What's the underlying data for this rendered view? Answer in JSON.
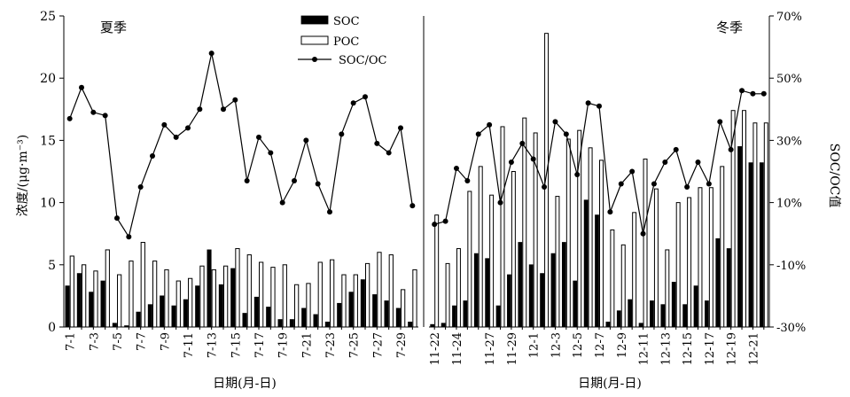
{
  "chart_data": {
    "type": "bar",
    "y_left_label": "浓度/(μg·m⁻³)",
    "y_right_label": "SOC/OC值",
    "y_left_ticks": [
      "0",
      "5",
      "10",
      "15",
      "20",
      "25"
    ],
    "y_left_range": [
      0,
      25
    ],
    "y_right_ticks": [
      "-30%",
      "-10%",
      "10%",
      "30%",
      "50%",
      "70%"
    ],
    "y_right_range": [
      -30,
      70
    ],
    "legend": {
      "soc": "SOC",
      "poc": "POC",
      "ratio": "SOC/OC"
    },
    "panels": [
      {
        "name": "summer",
        "label": "夏季",
        "xlabel": "日期(月-日)",
        "categories": [
          "7-1",
          "7-2",
          "7-3",
          "7-4",
          "7-5",
          "7-6",
          "7-7",
          "7-8",
          "7-9",
          "7-10",
          "7-11",
          "7-12",
          "7-13",
          "7-14",
          "7-15",
          "7-16",
          "7-17",
          "7-18",
          "7-19",
          "7-20",
          "7-21",
          "7-22",
          "7-23",
          "7-24",
          "7-25",
          "7-26",
          "7-27",
          "7-28",
          "7-29",
          "7-30"
        ],
        "tick_labels": [
          "7-1",
          "7-3",
          "7-5",
          "7-7",
          "7-9",
          "7-11",
          "7-13",
          "7-15",
          "7-17",
          "7-19",
          "7-21",
          "7-23",
          "7-25",
          "7-27",
          "7-29"
        ],
        "series": [
          {
            "name": "SOC",
            "values": [
              3.3,
              4.3,
              2.8,
              3.7,
              0.3,
              0.1,
              1.2,
              1.8,
              2.5,
              1.7,
              2.2,
              3.3,
              6.2,
              3.4,
              4.7,
              1.1,
              2.4,
              1.6,
              0.6,
              0.6,
              1.5,
              1.0,
              0.4,
              1.9,
              2.8,
              3.8,
              2.6,
              2.1,
              1.5,
              0.4
            ]
          },
          {
            "name": "POC",
            "values": [
              5.7,
              5.0,
              4.5,
              6.2,
              4.2,
              5.3,
              6.8,
              5.3,
              4.6,
              3.7,
              3.9,
              4.9,
              4.6,
              4.9,
              6.3,
              5.8,
              5.2,
              4.8,
              5.0,
              3.4,
              3.5,
              5.2,
              5.4,
              4.2,
              4.2,
              5.1,
              6.0,
              5.8,
              3.0,
              4.6
            ]
          },
          {
            "name": "SOC/OC",
            "values": [
              37,
              47,
              39,
              38,
              5,
              -1,
              15,
              25,
              35,
              31,
              34,
              40,
              58,
              40,
              43,
              17,
              31,
              26,
              10,
              17,
              30,
              16,
              7,
              32,
              42,
              44,
              29,
              26,
              34,
              9
            ]
          }
        ]
      },
      {
        "name": "winter",
        "label": "冬季",
        "xlabel": "日期(月-日)",
        "categories": [
          "11-22",
          "11-23",
          "11-24",
          "11-25",
          "11-26",
          "11-27",
          "11-28",
          "11-29",
          "11-30",
          "12-1",
          "12-2",
          "12-3",
          "12-4",
          "12-5",
          "12-6",
          "12-7",
          "12-8",
          "12-9",
          "12-10",
          "12-11",
          "12-12",
          "12-13",
          "12-14",
          "12-15",
          "12-16",
          "12-17",
          "12-18",
          "12-19",
          "12-20",
          "12-21",
          "12-22"
        ],
        "tick_labels": [
          "11-22",
          "11-24",
          "11-27",
          "11-29",
          "12-1",
          "12-3",
          "12-5",
          "12-7",
          "12-9",
          "12-11",
          "12-13",
          "12-15",
          "12-17",
          "12-19",
          "12-21"
        ],
        "series": [
          {
            "name": "SOC",
            "values": [
              0.2,
              0.3,
              1.7,
              2.1,
              5.9,
              5.5,
              1.7,
              4.2,
              6.8,
              5.0,
              4.3,
              5.9,
              6.8,
              3.7,
              10.2,
              9.0,
              0.4,
              1.3,
              2.2,
              0.3,
              2.1,
              1.8,
              3.6,
              1.8,
              3.3,
              2.1,
              7.1,
              6.3,
              14.5,
              13.2,
              13.2
            ]
          },
          {
            "name": "POC",
            "values": [
              9.0,
              5.1,
              6.3,
              10.9,
              12.9,
              10.6,
              16.1,
              12.5,
              16.8,
              15.6,
              23.6,
              10.5,
              15.1,
              15.8,
              14.4,
              13.4,
              7.8,
              6.6,
              9.2,
              13.5,
              11.1,
              6.2,
              10.0,
              10.4,
              11.2,
              11.2,
              12.9,
              17.4,
              17.4,
              16.4,
              16.4
            ]
          },
          {
            "name": "SOC/OC",
            "values": [
              3,
              4,
              21,
              17,
              32,
              35,
              10,
              23,
              29,
              24,
              15,
              36,
              32,
              19,
              42,
              41,
              7,
              16,
              20,
              0,
              16,
              23,
              27,
              15,
              23,
              16,
              36,
              27,
              46,
              45,
              45
            ]
          }
        ]
      }
    ]
  }
}
